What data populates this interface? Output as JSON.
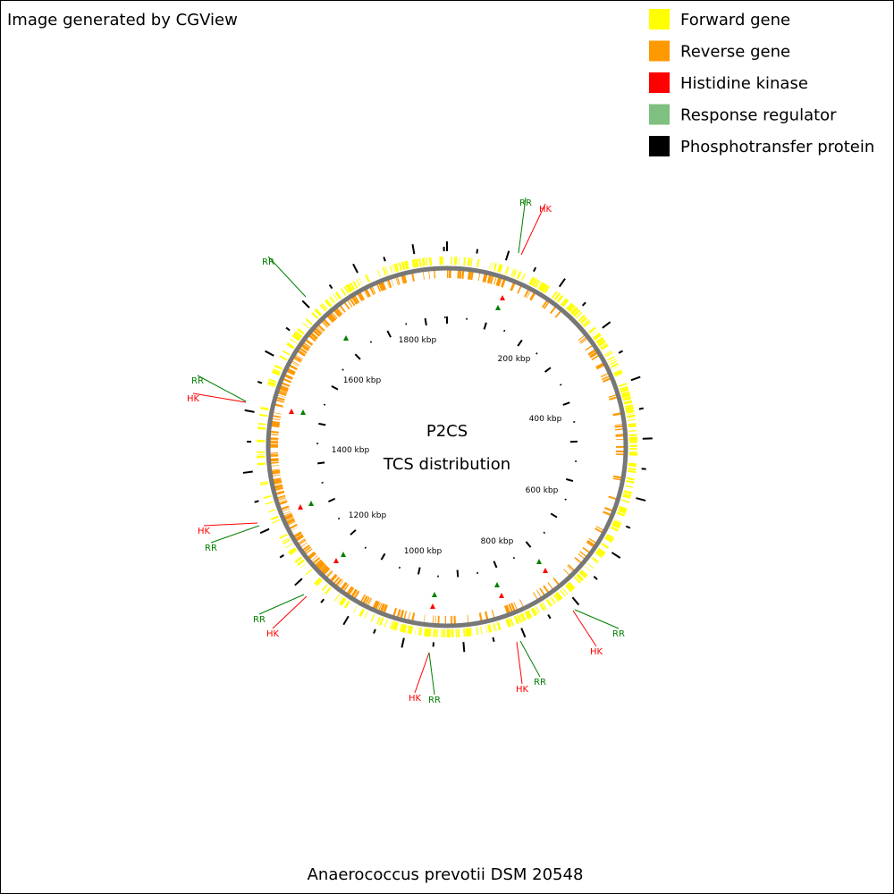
{
  "header": {
    "credit": "Image generated by CGView"
  },
  "legend": [
    {
      "label": "Forward gene",
      "color": "#ffff00"
    },
    {
      "label": "Reverse gene",
      "color": "#ff9900"
    },
    {
      "label": "Histidine kinase",
      "color": "#ff0000"
    },
    {
      "label": "Response regulator",
      "color": "#7fbf7f"
    },
    {
      "label": "Phosphotransfer protein",
      "color": "#000000"
    }
  ],
  "center": {
    "title": "P2CS",
    "subtitle": "TCS distribution"
  },
  "ruler": [
    "200 kbp",
    "400 kbp",
    "600 kbp",
    "800 kbp",
    "1000 kbp",
    "1200 kbp",
    "1400 kbp",
    "1600 kbp",
    "1800 kbp"
  ],
  "features": [
    "RR",
    "HK",
    "RR",
    "RR",
    "HK",
    "HK",
    "RR",
    "RR",
    "HK",
    "HK",
    "RR",
    "HK",
    "RR",
    "RR",
    "HK"
  ],
  "footer": "Anaerococcus prevotii DSM 20548"
}
